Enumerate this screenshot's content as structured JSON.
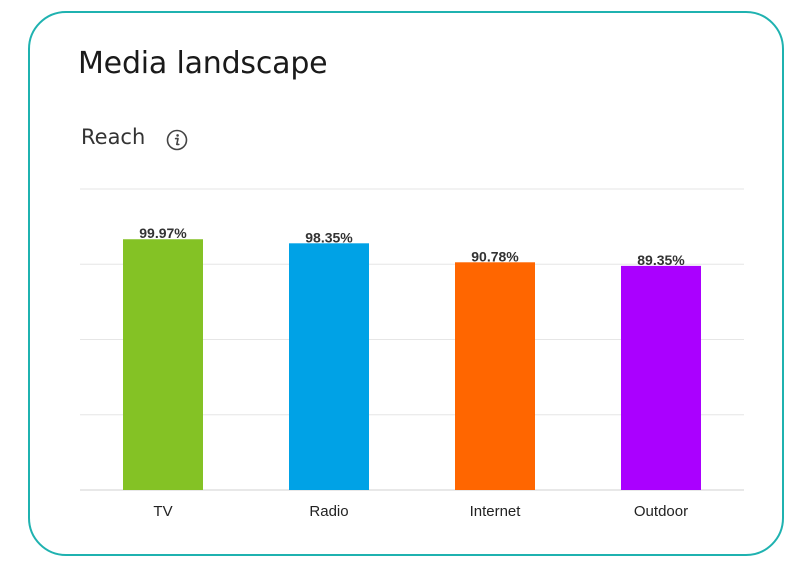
{
  "card": {
    "title": "Media landscape",
    "subtitle": "Reach",
    "info_icon": "info-icon"
  },
  "colors": {
    "border": "#1fb2b0",
    "gridline": "#e6e6e6",
    "bars": [
      "#84c225",
      "#00a2e6",
      "#ff6600",
      "#aa00ff"
    ]
  },
  "chart_data": {
    "type": "bar",
    "categories": [
      "TV",
      "Radio",
      "Internet",
      "Outdoor"
    ],
    "values": [
      99.97,
      98.35,
      90.78,
      89.35
    ],
    "value_labels": [
      "99.97%",
      "98.35%",
      "90.78%",
      "89.35%"
    ],
    "title": "",
    "xlabel": "",
    "ylabel": "",
    "ylim": [
      0,
      120
    ],
    "grid": true,
    "legend": "none"
  }
}
